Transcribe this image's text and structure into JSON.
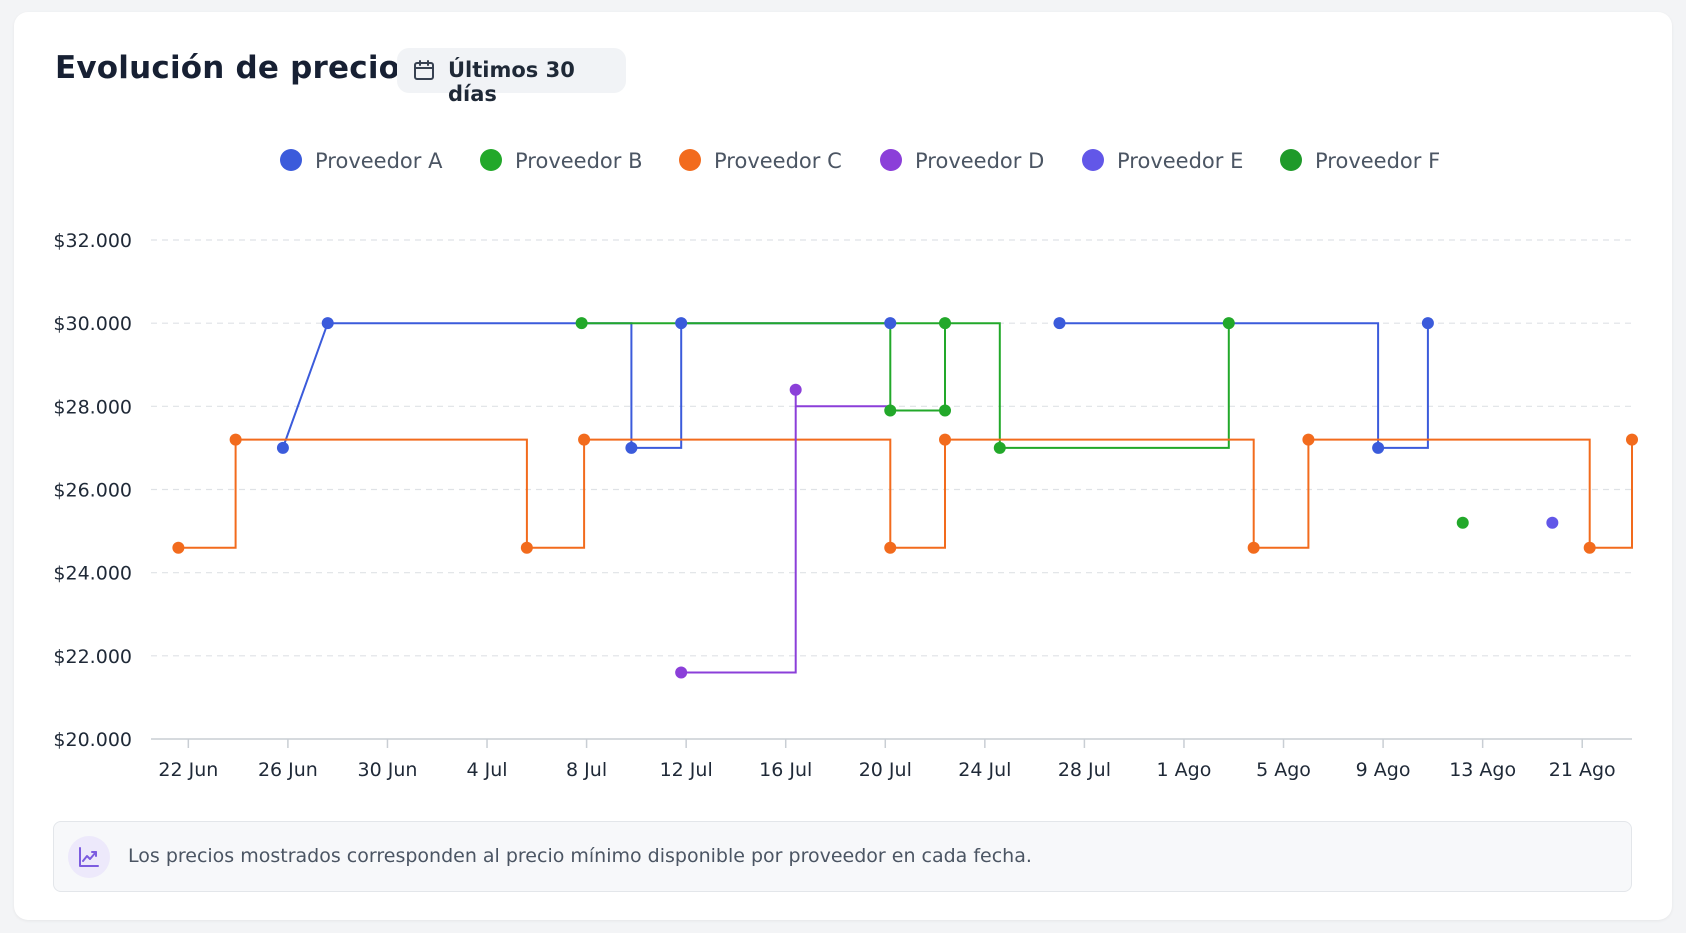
{
  "header": {
    "title": "Evolución de precios",
    "range_label": "Últimos 30 días"
  },
  "note": {
    "text": "Los precios mostrados corresponden al precio mínimo disponible por proveedor en cada fecha."
  },
  "chart_data": {
    "type": "line",
    "step": true,
    "grid": true,
    "legend_position": "top",
    "ylim": [
      20000,
      32000
    ],
    "yticks": [
      {
        "value": 20000,
        "label": "$20.000"
      },
      {
        "value": 22000,
        "label": "$22.000"
      },
      {
        "value": 24000,
        "label": "$24.000"
      },
      {
        "value": 26000,
        "label": "$26.000"
      },
      {
        "value": 28000,
        "label": "$28.000"
      },
      {
        "value": 30000,
        "label": "$30.000"
      },
      {
        "value": 32000,
        "label": "$32.000"
      }
    ],
    "xlim": [
      20.5,
      80
    ],
    "xticks": [
      {
        "value": 22,
        "label": "22 Jun"
      },
      {
        "value": 26,
        "label": "26 Jun"
      },
      {
        "value": 30,
        "label": "30 Jun"
      },
      {
        "value": 34,
        "label": "4 Jul"
      },
      {
        "value": 38,
        "label": "8 Jul"
      },
      {
        "value": 42,
        "label": "12 Jul"
      },
      {
        "value": 46,
        "label": "16 Jul"
      },
      {
        "value": 50,
        "label": "20 Jul"
      },
      {
        "value": 54,
        "label": "24 Jul"
      },
      {
        "value": 58,
        "label": "28 Jul"
      },
      {
        "value": 62,
        "label": "1 Ago"
      },
      {
        "value": 66,
        "label": "5 Ago"
      },
      {
        "value": 70,
        "label": "9 Ago"
      },
      {
        "value": 74,
        "label": "13 Ago"
      },
      {
        "value": 78,
        "label": "21 Ago"
      }
    ],
    "series": [
      {
        "name": "Proveedor A",
        "color": "#3b5bdb",
        "segments": [
          [
            [
              25.8,
              27000
            ],
            [
              27.6,
              30000
            ],
            [
              39.8,
              30000
            ],
            [
              39.8,
              27000
            ],
            [
              41.8,
              27000
            ],
            [
              41.8,
              30000
            ]
          ],
          [
            [
              41.8,
              30000
            ],
            [
              50.2,
              30000
            ]
          ],
          [
            [
              57.0,
              30000
            ],
            [
              69.8,
              30000
            ],
            [
              69.8,
              27000
            ],
            [
              71.8,
              27000
            ],
            [
              71.8,
              30000
            ]
          ]
        ],
        "points": [
          [
            25.8,
            27000
          ],
          [
            27.6,
            30000
          ],
          [
            39.8,
            27000
          ],
          [
            41.8,
            30000
          ],
          [
            50.2,
            30000
          ],
          [
            57.0,
            30000
          ],
          [
            69.8,
            27000
          ],
          [
            71.8,
            30000
          ]
        ]
      },
      {
        "name": "Proveedor B",
        "color": "#22a82a",
        "segments": [
          [
            [
              37.8,
              30000
            ],
            [
              54.6,
              30000
            ],
            [
              54.6,
              27000
            ],
            [
              63.8,
              27000
            ],
            [
              63.8,
              30000
            ]
          ],
          [
            [
              50.2,
              30000
            ],
            [
              50.2,
              27900
            ],
            [
              52.4,
              27900
            ],
            [
              52.4,
              30000
            ]
          ]
        ],
        "points": [
          [
            37.8,
            30000
          ],
          [
            50.2,
            27900
          ],
          [
            52.4,
            30000
          ],
          [
            52.4,
            27900
          ],
          [
            54.6,
            27000
          ],
          [
            63.8,
            30000
          ],
          [
            73.2,
            25200
          ]
        ]
      },
      {
        "name": "Proveedor C",
        "color": "#f26b1d",
        "segments": [
          [
            [
              21.6,
              24600
            ],
            [
              23.9,
              24600
            ],
            [
              23.9,
              27200
            ],
            [
              35.6,
              27200
            ],
            [
              35.6,
              24600
            ],
            [
              37.9,
              24600
            ],
            [
              37.9,
              27200
            ],
            [
              50.2,
              27200
            ],
            [
              50.2,
              24600
            ],
            [
              52.4,
              24600
            ],
            [
              52.4,
              27200
            ],
            [
              64.8,
              27200
            ],
            [
              64.8,
              24600
            ],
            [
              67.0,
              24600
            ],
            [
              67.0,
              27200
            ],
            [
              78.3,
              27200
            ],
            [
              78.3,
              24600
            ],
            [
              80.0,
              24600
            ],
            [
              80.0,
              27200
            ]
          ]
        ],
        "points": [
          [
            21.6,
            24600
          ],
          [
            23.9,
            27200
          ],
          [
            35.6,
            24600
          ],
          [
            37.9,
            27200
          ],
          [
            50.2,
            24600
          ],
          [
            52.4,
            27200
          ],
          [
            64.8,
            24600
          ],
          [
            67.0,
            27200
          ],
          [
            78.3,
            24600
          ],
          [
            80.0,
            27200
          ]
        ]
      },
      {
        "name": "Proveedor D",
        "color": "#8b3fd9",
        "segments": [
          [
            [
              41.8,
              21600
            ],
            [
              46.4,
              21600
            ],
            [
              46.4,
              28400
            ]
          ],
          [
            [
              46.4,
              28000
            ],
            [
              50.2,
              28000
            ]
          ]
        ],
        "points": [
          [
            41.8,
            21600
          ],
          [
            46.4,
            28400
          ]
        ]
      },
      {
        "name": "Proveedor E",
        "color": "#6257e8",
        "segments": [],
        "points": [
          [
            76.8,
            25200
          ]
        ]
      },
      {
        "name": "Proveedor F",
        "color": "#1f9a2a",
        "segments": [],
        "points": []
      }
    ]
  }
}
